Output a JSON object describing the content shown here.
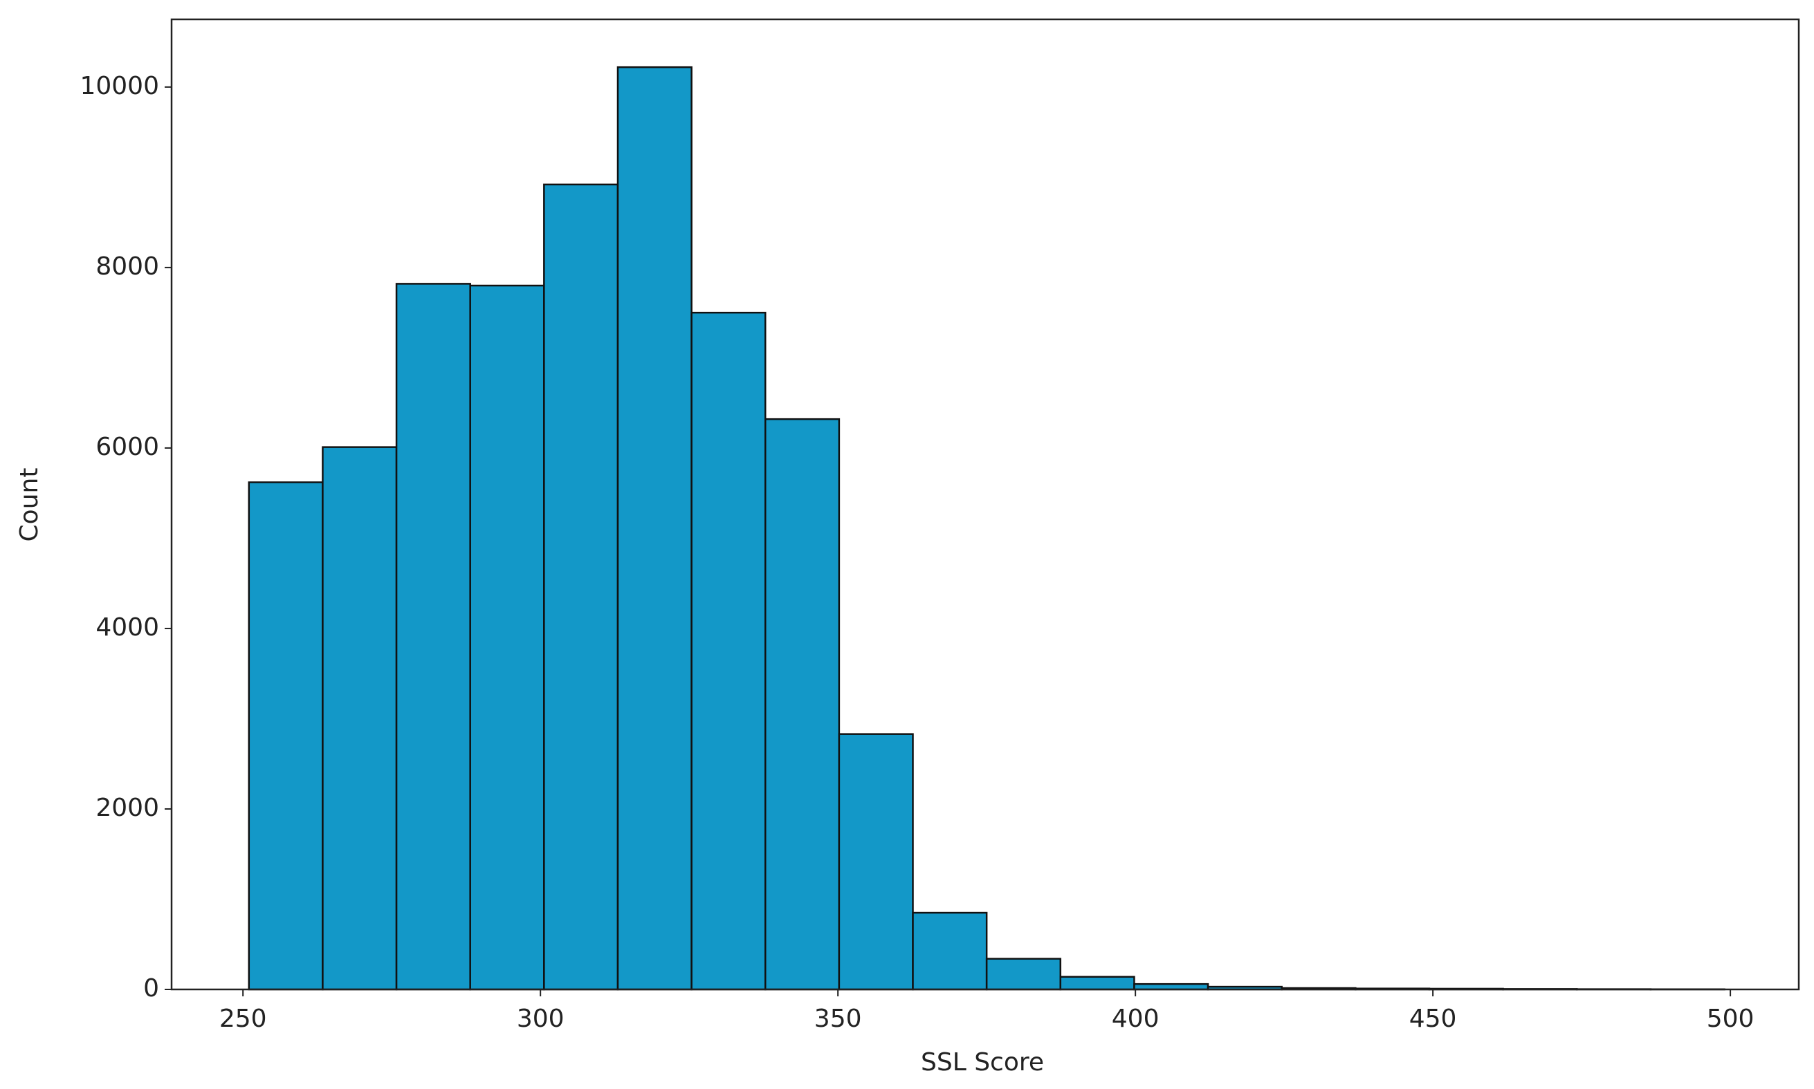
{
  "chart_data": {
    "type": "histogram",
    "x_label": "SSL Score",
    "y_label": "Count",
    "bins": [
      251,
      263.4,
      275.8,
      288.2,
      300.6,
      313,
      325.4,
      337.8,
      350.2,
      362.6,
      375,
      387.4,
      399.8,
      412.2,
      424.6,
      437,
      449.4,
      461.8,
      474.2,
      486.6,
      499
    ],
    "values": [
      5620,
      6010,
      7820,
      7800,
      8920,
      10220,
      7500,
      6320,
      2830,
      850,
      340,
      140,
      60,
      30,
      15,
      10,
      8,
      5,
      3,
      2
    ],
    "color": "#1398c8",
    "edgecolor": "#111111",
    "xlim": [
      238,
      511.5
    ],
    "xticks": [
      250,
      300,
      350,
      400,
      450,
      500
    ],
    "ylim": [
      0,
      10750
    ],
    "yticks": [
      0,
      2000,
      4000,
      6000,
      8000,
      10000
    ]
  }
}
